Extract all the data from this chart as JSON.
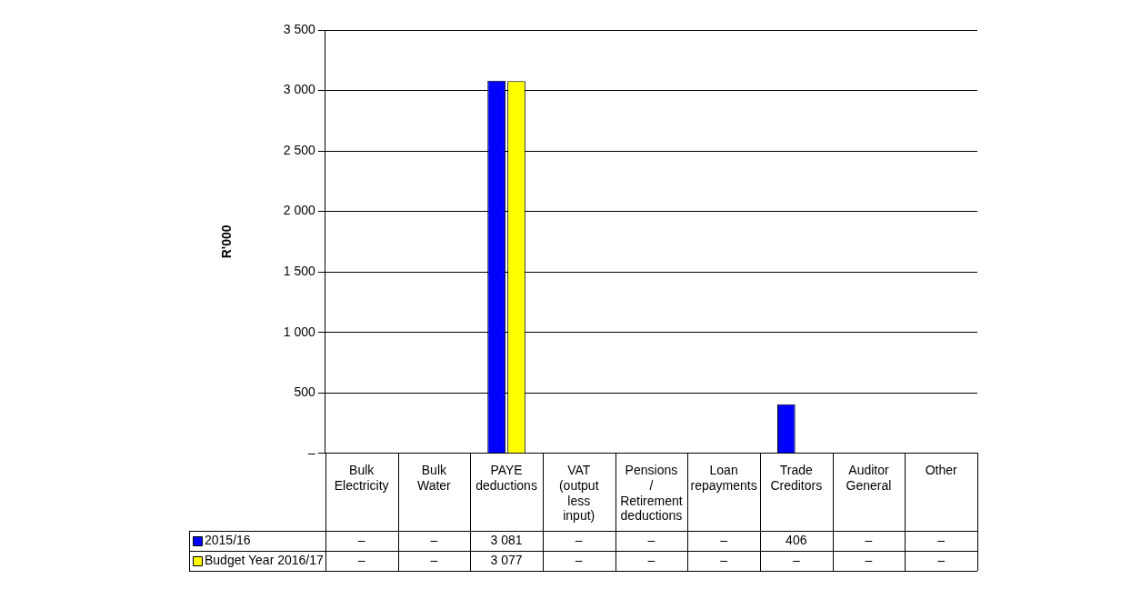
{
  "chart_data": {
    "type": "bar",
    "ylabel": "R'000",
    "categories": [
      "Bulk Electricity",
      "Bulk Water",
      "PAYE deductions",
      "VAT (output less input)",
      "Pensions / Retirement deductions",
      "Loan repayments",
      "Trade Creditors",
      "Auditor General",
      "Other"
    ],
    "series": [
      {
        "name": "2015/16",
        "color": "#0000ff",
        "values": [
          0,
          0,
          3081,
          0,
          0,
          0,
          406,
          0,
          0
        ],
        "value_labels": [
          "–",
          "–",
          "3 081",
          "–",
          "–",
          "–",
          "406",
          "–",
          "–"
        ]
      },
      {
        "name": "Budget Year 2016/17",
        "color": "#ffff00",
        "values": [
          0,
          0,
          3077,
          0,
          0,
          0,
          0,
          0,
          0
        ],
        "value_labels": [
          "–",
          "–",
          "3 077",
          "–",
          "–",
          "–",
          "–",
          "–",
          "–"
        ]
      }
    ],
    "ylim": [
      0,
      3500
    ],
    "yticks": [
      {
        "value": 0,
        "label": "–"
      },
      500,
      {
        "value": 1000,
        "label": "1 000"
      },
      {
        "value": 1500,
        "label": "1 500"
      },
      {
        "value": 2000,
        "label": "2 000"
      },
      {
        "value": 2500,
        "label": "2 500"
      },
      {
        "value": 3000,
        "label": "3 000"
      },
      {
        "value": 3500,
        "label": "3 500"
      }
    ],
    "grid": "y",
    "legend": "bottom"
  }
}
